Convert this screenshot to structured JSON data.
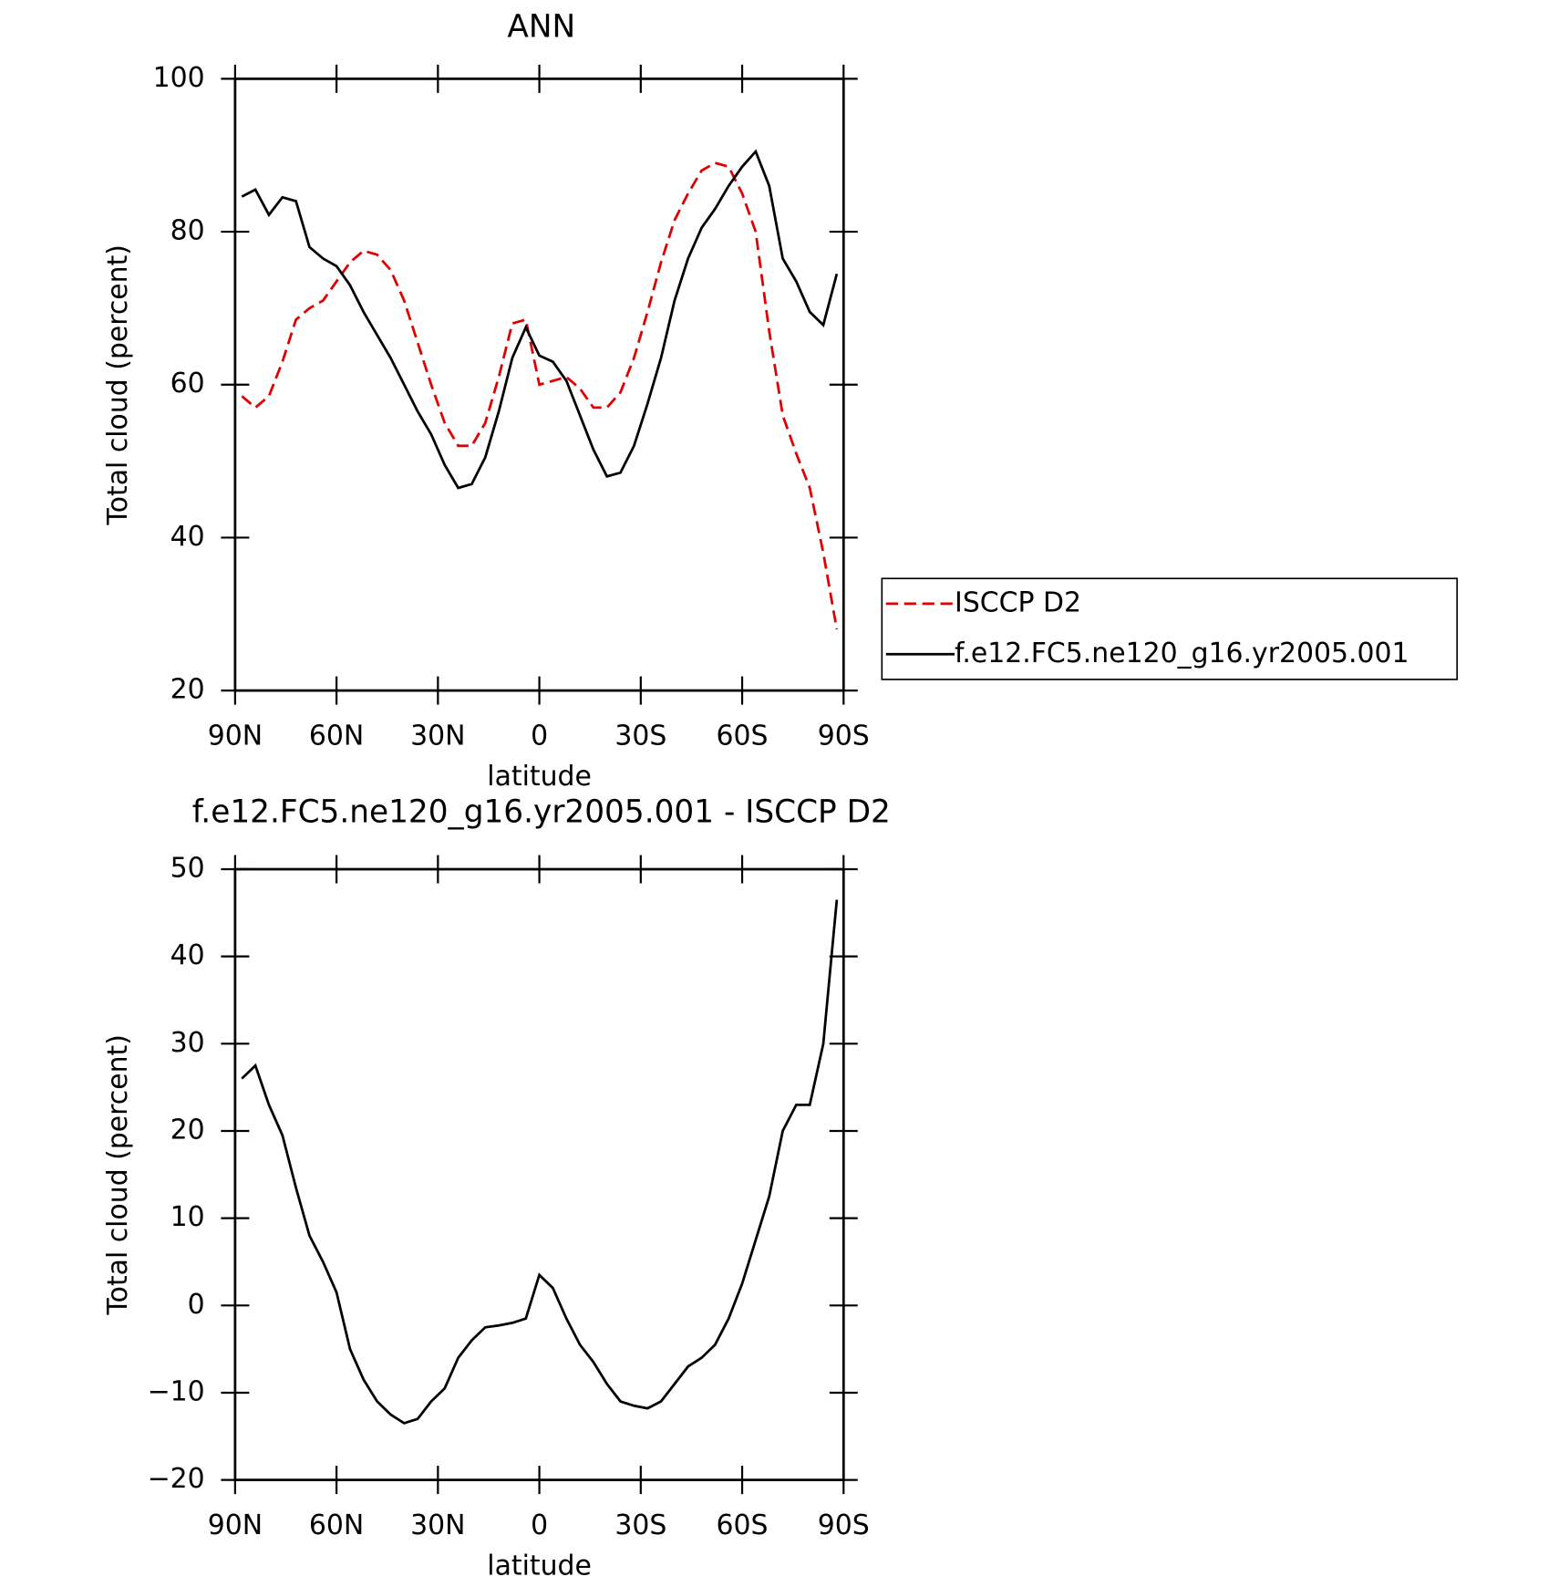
{
  "chart_data": [
    {
      "type": "line",
      "title": "ANN",
      "xlabel": "latitude",
      "ylabel": "Total cloud (percent)",
      "x": [
        88,
        84,
        80,
        76,
        72,
        68,
        64,
        60,
        56,
        52,
        48,
        44,
        40,
        36,
        32,
        28,
        24,
        20,
        16,
        12,
        8,
        4,
        0,
        -4,
        -8,
        -12,
        -16,
        -20,
        -24,
        -28,
        -32,
        -36,
        -40,
        -44,
        -48,
        -52,
        -56,
        -60,
        -64,
        -68,
        -72,
        -76,
        -80,
        -84,
        -88
      ],
      "xlim": [
        90,
        -90
      ],
      "xticks": [
        {
          "value": 90,
          "label": "90N"
        },
        {
          "value": 60,
          "label": "60N"
        },
        {
          "value": 30,
          "label": "30N"
        },
        0,
        {
          "value": -30,
          "label": "30S"
        },
        {
          "value": -60,
          "label": "60S"
        },
        {
          "value": -90,
          "label": "90S"
        }
      ],
      "ylim": [
        20,
        100
      ],
      "yticks": [
        20,
        40,
        60,
        80,
        100
      ],
      "legend": "outside-right",
      "series": [
        {
          "name": "ISCCP D2",
          "color": "#e00000",
          "dash": "dashed",
          "values": [
            58.5,
            57,
            58.5,
            63,
            68.5,
            70,
            71,
            73.5,
            76,
            77.5,
            77,
            75,
            71,
            65.5,
            60,
            55,
            52,
            52,
            55,
            61,
            68,
            68.5,
            60,
            60.5,
            61,
            59.5,
            57,
            57,
            59,
            63.5,
            69.5,
            76,
            81.5,
            85,
            88,
            89,
            88.5,
            85,
            80,
            67,
            56,
            51,
            46.5,
            38,
            28
          ]
        },
        {
          "name": "f.e12.FC5.ne120_g16.yr2005.001",
          "color": "#000000",
          "dash": "solid",
          "values": [
            84.6,
            85.5,
            82.2,
            84.5,
            84,
            78,
            76.5,
            75.5,
            73,
            69.5,
            66.5,
            63.5,
            60,
            56.5,
            53.5,
            49.5,
            46.5,
            47,
            50.5,
            56.5,
            63.5,
            67.5,
            63.8,
            63,
            60.5,
            56,
            51.5,
            48,
            48.5,
            52,
            57.5,
            63.5,
            71,
            76.5,
            80.5,
            83,
            86,
            88.5,
            90.5,
            86,
            76.5,
            73.5,
            69.5,
            67.8,
            74.5
          ]
        }
      ]
    },
    {
      "type": "line",
      "title": "f.e12.FC5.ne120_g16.yr2005.001 - ISCCP D2",
      "xlabel": "latitude",
      "ylabel": "Total cloud (percent)",
      "x": [
        88,
        84,
        80,
        76,
        72,
        68,
        64,
        60,
        56,
        52,
        48,
        44,
        40,
        36,
        32,
        28,
        24,
        20,
        16,
        12,
        8,
        4,
        0,
        -4,
        -8,
        -12,
        -16,
        -20,
        -24,
        -28,
        -32,
        -36,
        -40,
        -44,
        -48,
        -52,
        -56,
        -60,
        -64,
        -68,
        -72,
        -76,
        -80,
        -84,
        -88
      ],
      "xlim": [
        90,
        -90
      ],
      "xticks": [
        {
          "value": 90,
          "label": "90N"
        },
        {
          "value": 60,
          "label": "60N"
        },
        {
          "value": 30,
          "label": "30N"
        },
        0,
        {
          "value": -30,
          "label": "30S"
        },
        {
          "value": -60,
          "label": "60S"
        },
        {
          "value": -90,
          "label": "90S"
        }
      ],
      "ylim": [
        -20,
        50
      ],
      "yticks": [
        {
          "value": -20,
          "label": "−20"
        },
        {
          "value": -10,
          "label": "−10"
        },
        0,
        10,
        20,
        30,
        40,
        50
      ],
      "series": [
        {
          "color": "#000000",
          "dash": "solid",
          "values": [
            26,
            27.5,
            23,
            19.5,
            13.5,
            8,
            5,
            1.5,
            -5,
            -8.5,
            -11,
            -12.5,
            -13.5,
            -13,
            -11,
            -9.5,
            -6,
            -4,
            -2.5,
            -2.3,
            -2,
            -1.5,
            3.5,
            2,
            -1.5,
            -4.5,
            -6.5,
            -9,
            -11,
            -11.5,
            -11.8,
            -11,
            -9,
            -7,
            -6,
            -4.5,
            -1.5,
            2.5,
            7.5,
            12.5,
            20,
            23,
            23,
            30,
            46.5
          ]
        }
      ]
    }
  ]
}
